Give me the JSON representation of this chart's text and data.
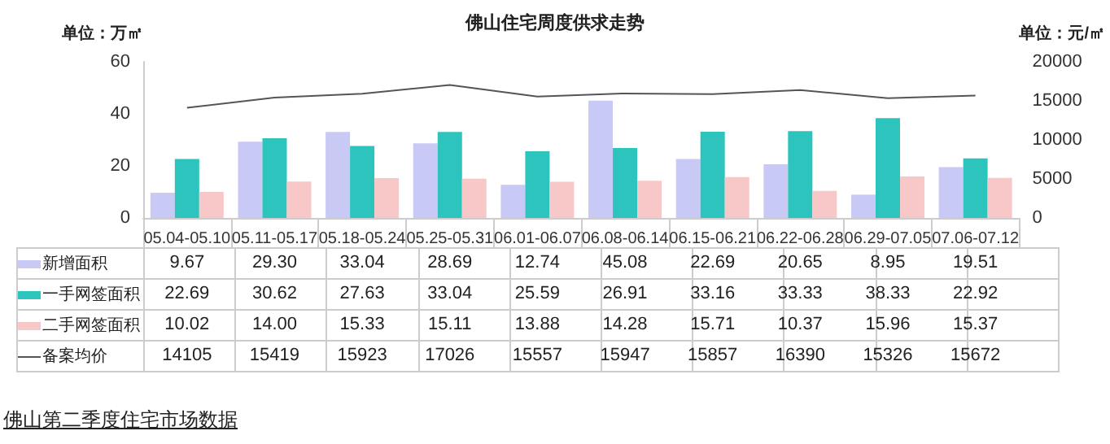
{
  "chart_data": {
    "type": "bar",
    "title": "佛山住宅周度供求走势",
    "ylabel": "单位：万㎡",
    "y2label": "单位：元/㎡",
    "categories": [
      "05.04-05.10",
      "05.11-05.17",
      "05.18-05.24",
      "05.25-05.31",
      "06.01-06.07",
      "06.08-06.14",
      "06.15-06.21",
      "06.22-06.28",
      "06.29-07.05",
      "07.06-07.12"
    ],
    "series": [
      {
        "name": "新增面积",
        "color": "#c9c9f5",
        "values": [
          9.67,
          29.3,
          33.04,
          28.69,
          12.74,
          45.08,
          22.69,
          20.65,
          8.95,
          19.51
        ],
        "value_labels": [
          "9.67",
          "29.30",
          "33.04",
          "28.69",
          "12.74",
          "45.08",
          "22.69",
          "20.65",
          "8.95",
          "19.51"
        ]
      },
      {
        "name": "一手网签面积",
        "color": "#2ec4be",
        "values": [
          22.69,
          30.62,
          27.63,
          33.04,
          25.59,
          26.91,
          33.16,
          33.33,
          38.33,
          22.92
        ],
        "value_labels": [
          "22.69",
          "30.62",
          "27.63",
          "33.04",
          "25.59",
          "26.91",
          "33.16",
          "33.33",
          "38.33",
          "22.92"
        ]
      },
      {
        "name": "二手网签面积",
        "color": "#f8c8c8",
        "values": [
          10.02,
          14,
          15.33,
          15.11,
          13.88,
          14.28,
          15.71,
          10.37,
          15.96,
          15.37
        ],
        "value_labels": [
          "10.02",
          "14.00",
          "15.33",
          "15.11",
          "13.88",
          "14.28",
          "15.71",
          "10.37",
          "15.96",
          "15.37"
        ]
      },
      {
        "name": "备案均价",
        "type": "line",
        "axis": "y2",
        "color": "#555555",
        "marker": "none",
        "line_style": "solid",
        "values": [
          14105,
          15419,
          15923,
          17026,
          15557,
          15947,
          15857,
          16390,
          15326,
          15672
        ],
        "value_labels": [
          "14105",
          "15419",
          "15923",
          "17026",
          "15557",
          "15947",
          "15857",
          "16390",
          "15326",
          "15672"
        ]
      }
    ],
    "ylim": [
      0,
      60
    ],
    "yticks": [
      0,
      20,
      40,
      60
    ],
    "y2lim": [
      0,
      20000
    ],
    "y2ticks": [
      0,
      5000,
      10000,
      15000,
      20000
    ],
    "grid": false,
    "legend": "bottom left",
    "annotations": [
      "佛山第二季度住宅市场数据"
    ]
  }
}
